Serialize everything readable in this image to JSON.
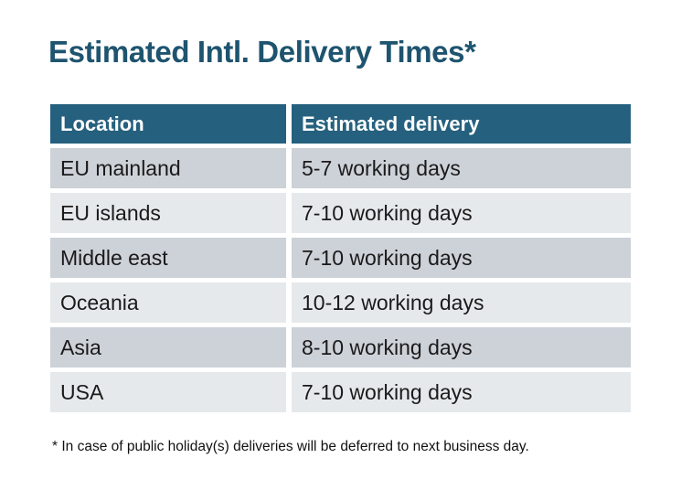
{
  "title": "Estimated Intl. Delivery Times*",
  "table": {
    "headers": {
      "location": "Location",
      "delivery": "Estimated delivery"
    },
    "rows": [
      {
        "location": "EU mainland",
        "delivery": "5-7 working days"
      },
      {
        "location": "EU islands",
        "delivery": "7-10 working days"
      },
      {
        "location": "Middle east",
        "delivery": "7-10 working days"
      },
      {
        "location": "Oceania",
        "delivery": "10-12 working days"
      },
      {
        "location": "Asia",
        "delivery": "8-10 working days"
      },
      {
        "location": "USA",
        "delivery": "7-10 working days"
      }
    ]
  },
  "footnote": "* In case of public holiday(s) deliveries will be deferred to next business day.",
  "colors": {
    "title_text": "#1E546F",
    "header_bg": "#25607E",
    "header_text": "#FFFFFF",
    "row_dark": "#CDD1D8",
    "row_light": "#E6E9EB",
    "body_text": "#1A1A1A",
    "background": "#FFFFFF"
  }
}
